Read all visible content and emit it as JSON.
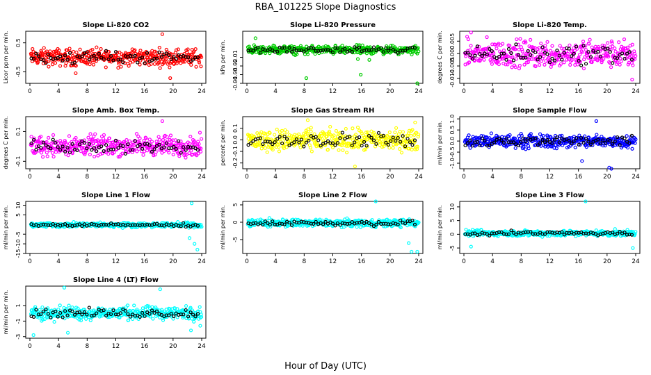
{
  "title": "RBA_101225  Slope Diagnostics",
  "xlabel": "Hour of Day (UTC)",
  "chart_data": [
    {
      "type": "scatter",
      "title": "Slope Li-820 CO2",
      "ylabel": "Licor ppm per min.",
      "color": "#ff0000",
      "ylim": [
        -0.9,
        0.9
      ],
      "yticks": [
        -0.5,
        0.5
      ],
      "ytick_labels": [
        "-0.5",
        "0.5"
      ],
      "xlim": [
        0,
        24
      ],
      "xticks": [
        0,
        4,
        8,
        12,
        16,
        20,
        24
      ],
      "xtick_labels": [
        "0",
        "4",
        "8",
        "12",
        "16",
        "20",
        "24"
      ],
      "spread": 0.24,
      "outliers": [
        [
          18.5,
          0.8
        ],
        [
          19.6,
          -0.72
        ],
        [
          6.4,
          -0.55
        ]
      ]
    },
    {
      "type": "scatter",
      "title": "Slope Li-820 Pressure",
      "ylabel": "kPa per min.",
      "color": "#00cc00",
      "ylim": [
        -0.04,
        0.02
      ],
      "yticks": [
        -0.04,
        -0.03,
        -0.02,
        -0.01
      ],
      "ytick_labels": [
        "-0.04",
        "-0.03",
        "-0.02",
        "-0.01"
      ],
      "xlim": [
        0,
        24
      ],
      "xticks": [
        0,
        4,
        8,
        12,
        16,
        20,
        24
      ],
      "xtick_labels": [
        "0",
        "4",
        "8",
        "12",
        "16",
        "20",
        "24"
      ],
      "spread": 0.004,
      "outliers": [
        [
          8.3,
          -0.034
        ],
        [
          15.9,
          -0.03
        ],
        [
          23.8,
          -0.04
        ],
        [
          1.2,
          0.012
        ],
        [
          15.5,
          -0.012
        ],
        [
          17.1,
          -0.013
        ]
      ]
    },
    {
      "type": "scatter",
      "title": "Slope Li-820 Temp.",
      "ylabel": "degrees C per min.",
      "color": "#ff00ff",
      "ylim": [
        -0.012,
        0.009
      ],
      "yticks": [
        -0.01,
        -0.005,
        0.0,
        0.005
      ],
      "ytick_labels": [
        "-0.010",
        "-0.005",
        "0.000",
        "0.005"
      ],
      "xlim": [
        0,
        24
      ],
      "xticks": [
        0,
        4,
        8,
        12,
        16,
        20,
        24
      ],
      "xtick_labels": [
        "0",
        "4",
        "8",
        "12",
        "16",
        "20",
        "24"
      ],
      "spread": 0.0045,
      "outliers": [
        [
          1.0,
          0.0085
        ],
        [
          23.5,
          -0.0105
        ]
      ]
    },
    {
      "type": "scatter",
      "title": "Slope Amb. Box Temp.",
      "ylabel": "degrees C per min.",
      "color": "#ff00ff",
      "ylim": [
        -0.15,
        0.2
      ],
      "yticks": [
        -0.1,
        0.1
      ],
      "ytick_labels": [
        "-0.1",
        "0.1"
      ],
      "xlim": [
        0,
        24
      ],
      "xticks": [
        0,
        4,
        8,
        12,
        16,
        20,
        24
      ],
      "xtick_labels": [
        "0",
        "4",
        "8",
        "12",
        "16",
        "20",
        "24"
      ],
      "spread": 0.055,
      "outliers": [
        [
          18.5,
          0.17
        ]
      ]
    },
    {
      "type": "scatter",
      "title": "Slope Gas Stream RH",
      "ylabel": "percent per min.",
      "color": "#ffff00",
      "ylim": [
        -0.25,
        0.2
      ],
      "yticks": [
        -0.2,
        -0.1,
        0.0,
        0.1
      ],
      "ytick_labels": [
        "-0.2",
        "-0.1",
        "0.0",
        "0.1"
      ],
      "xlim": [
        0,
        24
      ],
      "xticks": [
        0,
        4,
        8,
        12,
        16,
        20,
        24
      ],
      "xtick_labels": [
        "0",
        "4",
        "8",
        "12",
        "16",
        "20",
        "24"
      ],
      "spread": 0.075,
      "outliers": [
        [
          8.5,
          0.17
        ],
        [
          15.1,
          -0.23
        ],
        [
          23.5,
          0.15
        ]
      ]
    },
    {
      "type": "scatter",
      "title": "Slope Sample Flow",
      "ylabel": "ml/min per min.",
      "color": "#0000ff",
      "ylim": [
        -1.25,
        1.1
      ],
      "yticks": [
        -1.0,
        -0.5,
        0.0,
        0.5,
        1.0
      ],
      "ytick_labels": [
        "-1.0",
        "-0.5",
        "0.0",
        "0.5",
        "1.0"
      ],
      "xlim": [
        0,
        24
      ],
      "xticks": [
        0,
        4,
        8,
        12,
        16,
        20,
        24
      ],
      "xtick_labels": [
        "0",
        "4",
        "8",
        "12",
        "16",
        "20",
        "24"
      ],
      "spread": 0.25,
      "outliers": [
        [
          18.5,
          0.9
        ],
        [
          20.3,
          -1.2
        ],
        [
          20.6,
          -1.25
        ],
        [
          16.5,
          -0.9
        ]
      ]
    },
    {
      "type": "scatter",
      "title": "Slope Line 1 Flow",
      "ylabel": "ml/min per min.",
      "color": "#00ffff",
      "ylim": [
        -15,
        12
      ],
      "yticks": [
        -15,
        -10,
        -5,
        5,
        10
      ],
      "ytick_labels": [
        "-15",
        "-10",
        "-5",
        "5",
        "10"
      ],
      "xlim": [
        0,
        24
      ],
      "xticks": [
        0,
        4,
        8,
        12,
        16,
        20,
        24
      ],
      "xtick_labels": [
        "0",
        "4",
        "8",
        "12",
        "16",
        "20",
        "24"
      ],
      "spread": 1.0,
      "outliers": [
        [
          22.6,
          11
        ],
        [
          23.4,
          -13
        ],
        [
          23.0,
          -10
        ],
        [
          22.3,
          -7
        ]
      ]
    },
    {
      "type": "scatter",
      "title": "Slope Line 2 Flow",
      "ylabel": "ml/min per min.",
      "color": "#00ffff",
      "ylim": [
        -9,
        6
      ],
      "yticks": [
        -5,
        0,
        5
      ],
      "ytick_labels": [
        "-5",
        "0",
        "5"
      ],
      "xlim": [
        0,
        24
      ],
      "xticks": [
        0,
        4,
        8,
        12,
        16,
        20,
        24
      ],
      "xtick_labels": [
        "0",
        "4",
        "8",
        "12",
        "16",
        "20",
        "24"
      ],
      "spread": 0.9,
      "outliers": [
        [
          18.0,
          6
        ],
        [
          23.0,
          -8.5
        ],
        [
          23.8,
          -8.5
        ],
        [
          22.6,
          -6
        ]
      ]
    },
    {
      "type": "scatter",
      "title": "Slope Line 3 Flow",
      "ylabel": "ml/min per min.",
      "color": "#00ffff",
      "ylim": [
        -7,
        12
      ],
      "yticks": [
        -5,
        0,
        5,
        10
      ],
      "ytick_labels": [
        "-5",
        "0",
        "5",
        "10"
      ],
      "xlim": [
        0,
        24
      ],
      "xticks": [
        0,
        4,
        8,
        12,
        16,
        20,
        24
      ],
      "xtick_labels": [
        "0",
        "4",
        "8",
        "12",
        "16",
        "20",
        "24"
      ],
      "spread": 0.9,
      "outliers": [
        [
          17.0,
          12
        ],
        [
          23.6,
          -5
        ],
        [
          1.0,
          -4.5
        ]
      ]
    },
    {
      "type": "scatter",
      "title": "Slope Line 4 (LT) Flow",
      "ylabel": "ml/min per min.",
      "color": "#00ffff",
      "ylim": [
        -3.2,
        3.5
      ],
      "yticks": [
        -3,
        -1,
        1
      ],
      "ytick_labels": [
        "-3",
        "-1",
        "1"
      ],
      "xlim": [
        0,
        24
      ],
      "xticks": [
        0,
        4,
        8,
        12,
        16,
        20,
        24
      ],
      "xtick_labels": [
        "0",
        "4",
        "8",
        "12",
        "16",
        "20",
        "24"
      ],
      "spread": 0.7,
      "outliers": [
        [
          4.8,
          3.3
        ],
        [
          18.2,
          3.1
        ],
        [
          0.5,
          -2.8
        ],
        [
          22.5,
          -2.2
        ],
        [
          23.8,
          -1.6
        ],
        [
          5.3,
          -2.5
        ]
      ]
    }
  ]
}
